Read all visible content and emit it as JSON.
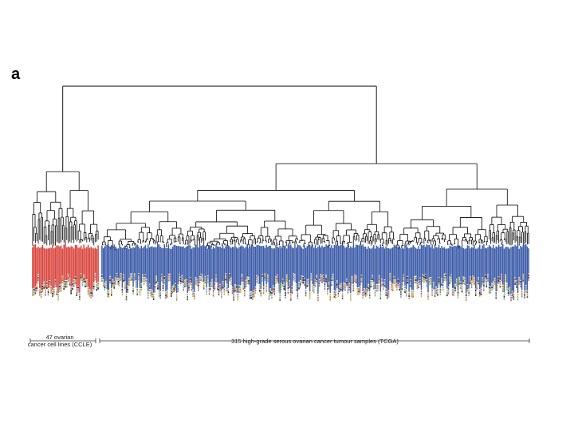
{
  "panel_label": "a",
  "groups": {
    "ccle": {
      "label": "47 ovarian cancer cell lines (CCLE)",
      "line1": "47 ovarian",
      "line2": "cancer cell lines (CCLE)",
      "count": 47,
      "color": "#d9453e"
    },
    "tcga": {
      "label": "315 high-grade serous ovarian cancer tumour samples (TCGA)",
      "count": 315,
      "color": "#3b5ba8"
    }
  },
  "colors": {
    "branch": "#000000",
    "annotation_palette": [
      "#2b2b2b",
      "#5a5a5a",
      "#c9b35a",
      "#d38b3a",
      "#7aa6c9",
      "#8a7ab5",
      "#9fbf6a",
      "#c86464"
    ]
  }
}
